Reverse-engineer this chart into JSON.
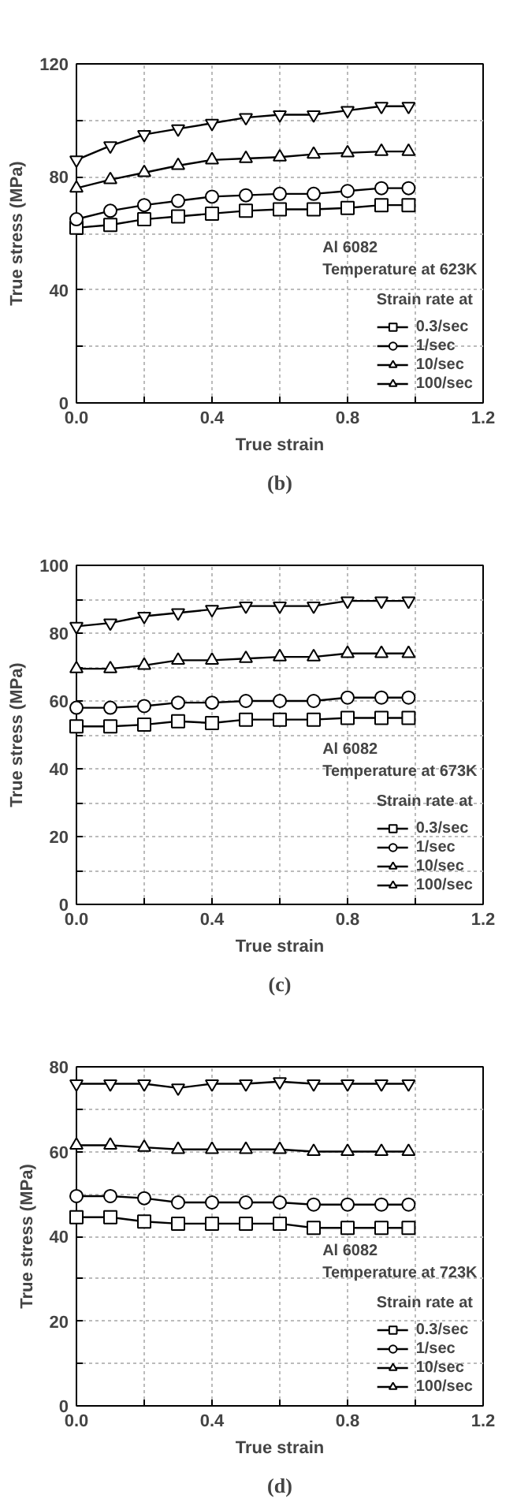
{
  "chart_data": [
    {
      "type": "line",
      "title": "(b)",
      "xlabel": "True strain",
      "ylabel": "True stress (MPa)",
      "legend_title": "Strain rate at",
      "annotations": [
        "Al 6082",
        "Temperature at 623K"
      ],
      "x": [
        0,
        0.1,
        0.2,
        0.3,
        0.4,
        0.5,
        0.6,
        0.7,
        0.8,
        0.9,
        0.98
      ],
      "xlim": [
        0,
        1.2
      ],
      "xticks": [
        {
          "value": 0,
          "label": "0.0"
        },
        {
          "value": 0.2,
          "label": null
        },
        0.4,
        {
          "value": 0.6,
          "label": null
        },
        0.8,
        {
          "value": 1.0,
          "label": null
        },
        1.2
      ],
      "ylim": [
        0,
        120
      ],
      "yticks": [
        0,
        {
          "value": 20,
          "label": null
        },
        40,
        {
          "value": 60,
          "label": null
        },
        80,
        {
          "value": 100,
          "label": null
        },
        120
      ],
      "grid": true,
      "legend": "bottom right",
      "line_style": "solid",
      "series": [
        {
          "name": "0.3/sec",
          "color": "#000000",
          "marker": "square",
          "values": [
            62,
            63,
            65,
            66,
            67,
            68,
            68.5,
            68.5,
            69,
            70,
            70
          ]
        },
        {
          "name": "1/sec",
          "color": "#000000",
          "marker": "circle",
          "values": [
            65,
            68,
            70,
            71.5,
            73,
            73.5,
            74,
            74,
            75,
            76,
            76
          ]
        },
        {
          "name": "10/sec",
          "color": "#000000",
          "marker": "triangle",
          "values": [
            76,
            79,
            81.5,
            84,
            86,
            86.5,
            87,
            88,
            88.5,
            89,
            89
          ]
        },
        {
          "name": "100/sec",
          "color": "#000000",
          "marker": "triangle",
          "values": [
            86,
            91,
            95,
            97,
            99,
            101,
            102,
            102,
            103.5,
            105,
            105
          ]
        }
      ]
    },
    {
      "type": "line",
      "title": "(c)",
      "xlabel": "True strain",
      "ylabel": "True stress (MPa)",
      "legend_title": "Strain rate at",
      "annotations": [
        "Al 6082",
        "Temperature at 673K"
      ],
      "x": [
        0,
        0.1,
        0.2,
        0.3,
        0.4,
        0.5,
        0.6,
        0.7,
        0.8,
        0.9,
        0.98
      ],
      "xlim": [
        0,
        1.2
      ],
      "xticks": [
        {
          "value": 0,
          "label": "0.0"
        },
        {
          "value": 0.2,
          "label": null
        },
        0.4,
        {
          "value": 0.6,
          "label": null
        },
        0.8,
        {
          "value": 1.0,
          "label": null
        },
        1.2
      ],
      "ylim": [
        0,
        100
      ],
      "yticks": [
        0,
        {
          "value": 10,
          "label": null
        },
        20,
        {
          "value": 30,
          "label": null
        },
        40,
        {
          "value": 50,
          "label": null
        },
        60,
        {
          "value": 70,
          "label": null
        },
        80,
        {
          "value": 90,
          "label": null
        },
        100
      ],
      "grid": true,
      "legend": "bottom right",
      "line_style": "solid",
      "series": [
        {
          "name": "0.3/sec",
          "color": "#000000",
          "marker": "square",
          "values": [
            52.5,
            52.5,
            53,
            54,
            53.5,
            54.5,
            54.5,
            54.5,
            55,
            55,
            55
          ]
        },
        {
          "name": "1/sec",
          "color": "#000000",
          "marker": "circle",
          "values": [
            58,
            58,
            58.5,
            59.5,
            59.5,
            60,
            60,
            60,
            61,
            61,
            61
          ]
        },
        {
          "name": "10/sec",
          "color": "#000000",
          "marker": "triangle",
          "values": [
            69.5,
            69.5,
            70.5,
            72,
            72,
            72.5,
            73,
            73,
            74,
            74,
            74
          ]
        },
        {
          "name": "100/sec",
          "color": "#000000",
          "marker": "triangle",
          "values": [
            82,
            83,
            85,
            86,
            87,
            88,
            88,
            88,
            89.5,
            89.5,
            89.5
          ]
        }
      ]
    },
    {
      "type": "line",
      "title": "(d)",
      "xlabel": "True strain",
      "ylabel": "True stress (MPa)",
      "legend_title": "Strain rate at",
      "annotations": [
        "Al 6082",
        "Temperature at 723K"
      ],
      "x": [
        0,
        0.1,
        0.2,
        0.3,
        0.4,
        0.5,
        0.6,
        0.7,
        0.8,
        0.9,
        0.98
      ],
      "xlim": [
        0,
        1.2
      ],
      "xticks": [
        {
          "value": 0,
          "label": "0.0"
        },
        {
          "value": 0.2,
          "label": null
        },
        0.4,
        {
          "value": 0.6,
          "label": null
        },
        0.8,
        {
          "value": 1.0,
          "label": null
        },
        1.2
      ],
      "ylim": [
        0,
        80
      ],
      "yticks": [
        0,
        {
          "value": 10,
          "label": null
        },
        20,
        {
          "value": 30,
          "label": null
        },
        40,
        {
          "value": 50,
          "label": null
        },
        60,
        {
          "value": 70,
          "label": null
        },
        80
      ],
      "grid": true,
      "legend": "bottom right",
      "line_style": "solid",
      "series": [
        {
          "name": "0.3/sec",
          "color": "#000000",
          "marker": "square",
          "values": [
            44.5,
            44.5,
            43.5,
            43,
            43,
            43,
            43,
            42,
            42,
            42,
            42
          ]
        },
        {
          "name": "1/sec",
          "color": "#000000",
          "marker": "circle",
          "values": [
            49.5,
            49.5,
            49,
            48,
            48,
            48,
            48,
            47.5,
            47.5,
            47.5,
            47.5
          ]
        },
        {
          "name": "10/sec",
          "color": "#000000",
          "marker": "triangle",
          "values": [
            61.5,
            61.5,
            61,
            60.5,
            60.5,
            60.5,
            60.5,
            60,
            60,
            60,
            60
          ]
        },
        {
          "name": "100/sec",
          "color": "#000000",
          "marker": "triangle",
          "values": [
            76,
            76,
            76,
            75,
            76,
            76,
            76.5,
            76,
            76,
            76,
            76
          ]
        }
      ]
    }
  ]
}
